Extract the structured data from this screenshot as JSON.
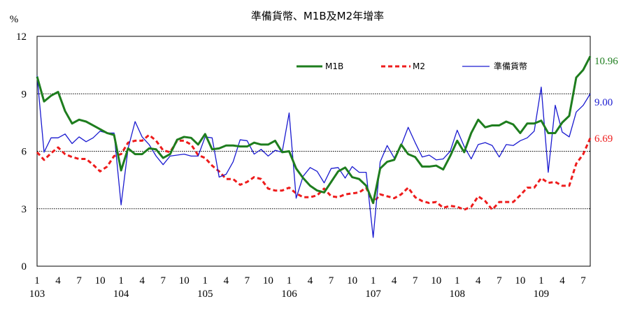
{
  "chart_data": {
    "type": "line",
    "title": "準備貨幣、M1B及M2年增率",
    "ylabel": "%",
    "ylim": [
      0,
      12
    ],
    "yticks": [
      0,
      3,
      6,
      9,
      12
    ],
    "grid": "horizontal dotted at 3, 6, 9",
    "legend_position": "top-right",
    "month_tick_labels": [
      "1",
      "4",
      "7",
      "10"
    ],
    "year_labels": [
      "103",
      "104",
      "105",
      "106",
      "107",
      "108",
      "109"
    ],
    "x_start": "103/1",
    "x_end": "109/8",
    "series": [
      {
        "name": "M1B",
        "color": "#1e7d1e",
        "style": "solid-thick",
        "end_label": "10.96",
        "values": [
          9.9,
          8.6,
          8.9,
          9.1,
          8.1,
          7.45,
          7.65,
          7.55,
          7.35,
          7.15,
          6.95,
          6.85,
          5.0,
          6.15,
          5.85,
          5.85,
          6.15,
          6.1,
          5.65,
          5.85,
          6.6,
          6.75,
          6.7,
          6.35,
          6.9,
          6.1,
          6.15,
          6.3,
          6.3,
          6.25,
          6.25,
          6.45,
          6.35,
          6.35,
          6.55,
          5.95,
          6.0,
          5.1,
          4.6,
          4.2,
          3.95,
          3.85,
          4.4,
          4.95,
          5.15,
          4.65,
          4.55,
          4.2,
          3.3,
          5.1,
          5.45,
          5.55,
          6.35,
          5.85,
          5.7,
          5.2,
          5.2,
          5.25,
          5.05,
          5.75,
          6.55,
          5.95,
          6.95,
          7.65,
          7.25,
          7.35,
          7.35,
          7.55,
          7.4,
          6.95,
          7.45,
          7.45,
          7.6,
          6.95,
          6.95,
          7.5,
          7.85,
          9.85,
          10.25,
          10.96
        ]
      },
      {
        "name": "M2",
        "color": "#ee1c1c",
        "style": "dashed",
        "end_label": "6.69",
        "values": [
          5.95,
          5.55,
          5.9,
          6.2,
          5.85,
          5.7,
          5.6,
          5.6,
          5.3,
          4.95,
          5.2,
          5.75,
          5.85,
          6.45,
          6.55,
          6.55,
          6.85,
          6.55,
          6.05,
          5.95,
          6.55,
          6.55,
          6.35,
          5.8,
          5.65,
          5.25,
          4.95,
          4.55,
          4.55,
          4.25,
          4.4,
          4.65,
          4.55,
          4.05,
          3.95,
          3.95,
          4.1,
          3.8,
          3.6,
          3.6,
          3.7,
          4.05,
          3.65,
          3.6,
          3.75,
          3.8,
          3.85,
          4.1,
          3.3,
          3.75,
          3.65,
          3.55,
          3.75,
          4.1,
          3.6,
          3.4,
          3.3,
          3.35,
          3.05,
          3.15,
          3.1,
          2.95,
          3.1,
          3.65,
          3.4,
          2.95,
          3.35,
          3.35,
          3.35,
          3.7,
          4.1,
          4.1,
          4.6,
          4.35,
          4.4,
          4.2,
          4.2,
          5.35,
          5.85,
          6.69
        ]
      },
      {
        "name": "準備貨幣",
        "color": "#1a1ad0",
        "style": "solid-thin",
        "end_label": "9.00",
        "values": [
          9.95,
          5.95,
          6.7,
          6.7,
          6.9,
          6.4,
          6.75,
          6.5,
          6.7,
          7.05,
          6.95,
          6.95,
          3.2,
          6.15,
          7.55,
          6.75,
          6.35,
          5.75,
          5.3,
          5.75,
          5.8,
          5.85,
          5.75,
          5.75,
          6.75,
          6.7,
          4.65,
          4.8,
          5.45,
          6.6,
          6.55,
          5.85,
          6.1,
          5.75,
          6.05,
          5.95,
          8.0,
          3.55,
          4.7,
          5.15,
          4.95,
          4.35,
          5.1,
          5.15,
          4.6,
          5.2,
          4.9,
          4.9,
          1.5,
          5.45,
          6.3,
          5.65,
          6.3,
          7.25,
          6.45,
          5.7,
          5.8,
          5.55,
          5.6,
          6.0,
          7.1,
          6.25,
          5.6,
          6.35,
          6.45,
          6.3,
          5.7,
          6.35,
          6.3,
          6.55,
          6.7,
          7.05,
          9.35,
          4.9,
          8.4,
          7.0,
          6.75,
          8.05,
          8.4,
          9.0
        ]
      }
    ]
  }
}
